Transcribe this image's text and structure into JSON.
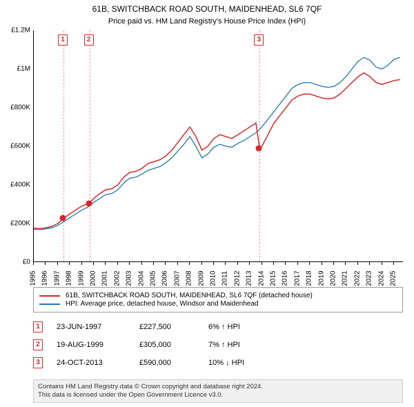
{
  "title": {
    "line1": "61B, SWITCHBACK ROAD SOUTH, MAIDENHEAD, SL6 7QF",
    "line2": "Price paid vs. HM Land Registry's House Price Index (HPI)"
  },
  "chart": {
    "type": "line",
    "x_range": [
      1995,
      2025.8
    ],
    "y_range": [
      0,
      1200000
    ],
    "y_ticks": [
      0,
      200000,
      400000,
      600000,
      800000,
      1000000,
      1200000
    ],
    "y_tick_labels": [
      "£0",
      "£200K",
      "£400K",
      "£600K",
      "£800K",
      "£1M",
      "£1.2M"
    ],
    "x_ticks": [
      1995,
      1996,
      1997,
      1998,
      1999,
      2000,
      2001,
      2002,
      2003,
      2004,
      2005,
      2006,
      2007,
      2008,
      2009,
      2010,
      2011,
      2012,
      2013,
      2014,
      2015,
      2016,
      2017,
      2018,
      2019,
      2020,
      2021,
      2022,
      2023,
      2024,
      2025
    ],
    "background_color": "#ffffff",
    "axis_color": "#000000",
    "axis_fontsize": 10,
    "series": {
      "property": {
        "label": "61B, SWITCHBACK ROAD SOUTH, MAIDENHEAD, SL6 7QF (detached house)",
        "color": "#d62728",
        "line_width": 1.5,
        "data": [
          [
            1995.0,
            176000
          ],
          [
            1995.5,
            174000
          ],
          [
            1996.0,
            178000
          ],
          [
            1996.5,
            185000
          ],
          [
            1997.0,
            200000
          ],
          [
            1997.48,
            227500
          ],
          [
            1998.0,
            250000
          ],
          [
            1998.5,
            270000
          ],
          [
            1999.0,
            290000
          ],
          [
            1999.63,
            305000
          ],
          [
            2000.0,
            330000
          ],
          [
            2000.5,
            355000
          ],
          [
            2001.0,
            375000
          ],
          [
            2001.5,
            380000
          ],
          [
            2002.0,
            400000
          ],
          [
            2002.5,
            440000
          ],
          [
            2003.0,
            465000
          ],
          [
            2003.5,
            470000
          ],
          [
            2004.0,
            485000
          ],
          [
            2004.5,
            510000
          ],
          [
            2005.0,
            520000
          ],
          [
            2005.5,
            530000
          ],
          [
            2006.0,
            550000
          ],
          [
            2006.5,
            580000
          ],
          [
            2007.0,
            620000
          ],
          [
            2007.5,
            660000
          ],
          [
            2008.0,
            700000
          ],
          [
            2008.5,
            650000
          ],
          [
            2009.0,
            580000
          ],
          [
            2009.5,
            600000
          ],
          [
            2010.0,
            640000
          ],
          [
            2010.5,
            660000
          ],
          [
            2011.0,
            650000
          ],
          [
            2011.5,
            640000
          ],
          [
            2012.0,
            660000
          ],
          [
            2012.5,
            680000
          ],
          [
            2013.0,
            700000
          ],
          [
            2013.5,
            720000
          ],
          [
            2013.81,
            590000
          ],
          [
            2014.0,
            600000
          ],
          [
            2014.5,
            660000
          ],
          [
            2015.0,
            720000
          ],
          [
            2015.5,
            760000
          ],
          [
            2016.0,
            800000
          ],
          [
            2016.5,
            840000
          ],
          [
            2017.0,
            860000
          ],
          [
            2017.5,
            870000
          ],
          [
            2018.0,
            870000
          ],
          [
            2018.5,
            860000
          ],
          [
            2019.0,
            850000
          ],
          [
            2019.5,
            845000
          ],
          [
            2020.0,
            850000
          ],
          [
            2020.5,
            870000
          ],
          [
            2021.0,
            900000
          ],
          [
            2021.5,
            930000
          ],
          [
            2022.0,
            960000
          ],
          [
            2022.5,
            980000
          ],
          [
            2023.0,
            960000
          ],
          [
            2023.5,
            930000
          ],
          [
            2024.0,
            920000
          ],
          [
            2024.5,
            930000
          ],
          [
            2025.0,
            940000
          ],
          [
            2025.5,
            945000
          ]
        ]
      },
      "hpi": {
        "label": "HPI: Average price, detached house, Windsor and Maidenhead",
        "color": "#1f77b4",
        "line_width": 1.3,
        "data": [
          [
            1995.0,
            170000
          ],
          [
            1995.5,
            168000
          ],
          [
            1996.0,
            172000
          ],
          [
            1996.5,
            178000
          ],
          [
            1997.0,
            190000
          ],
          [
            1997.5,
            210000
          ],
          [
            1998.0,
            230000
          ],
          [
            1998.5,
            250000
          ],
          [
            1999.0,
            270000
          ],
          [
            1999.5,
            285000
          ],
          [
            2000.0,
            310000
          ],
          [
            2000.5,
            330000
          ],
          [
            2001.0,
            350000
          ],
          [
            2001.5,
            355000
          ],
          [
            2002.0,
            375000
          ],
          [
            2002.5,
            410000
          ],
          [
            2003.0,
            435000
          ],
          [
            2003.5,
            440000
          ],
          [
            2004.0,
            455000
          ],
          [
            2004.5,
            475000
          ],
          [
            2005.0,
            485000
          ],
          [
            2005.5,
            495000
          ],
          [
            2006.0,
            515000
          ],
          [
            2006.5,
            540000
          ],
          [
            2007.0,
            575000
          ],
          [
            2007.5,
            610000
          ],
          [
            2008.0,
            650000
          ],
          [
            2008.5,
            600000
          ],
          [
            2009.0,
            540000
          ],
          [
            2009.5,
            560000
          ],
          [
            2010.0,
            595000
          ],
          [
            2010.5,
            610000
          ],
          [
            2011.0,
            600000
          ],
          [
            2011.5,
            595000
          ],
          [
            2012.0,
            615000
          ],
          [
            2012.5,
            630000
          ],
          [
            2013.0,
            650000
          ],
          [
            2013.5,
            670000
          ],
          [
            2014.0,
            700000
          ],
          [
            2014.5,
            740000
          ],
          [
            2015.0,
            780000
          ],
          [
            2015.5,
            820000
          ],
          [
            2016.0,
            860000
          ],
          [
            2016.5,
            900000
          ],
          [
            2017.0,
            920000
          ],
          [
            2017.5,
            930000
          ],
          [
            2018.0,
            930000
          ],
          [
            2018.5,
            920000
          ],
          [
            2019.0,
            910000
          ],
          [
            2019.5,
            905000
          ],
          [
            2020.0,
            910000
          ],
          [
            2020.5,
            930000
          ],
          [
            2021.0,
            960000
          ],
          [
            2021.5,
            1000000
          ],
          [
            2022.0,
            1040000
          ],
          [
            2022.5,
            1060000
          ],
          [
            2023.0,
            1045000
          ],
          [
            2023.5,
            1010000
          ],
          [
            2024.0,
            1000000
          ],
          [
            2024.5,
            1020000
          ],
          [
            2025.0,
            1050000
          ],
          [
            2025.5,
            1060000
          ]
        ]
      }
    },
    "sale_markers": [
      {
        "n": "1",
        "x": 1997.48,
        "y": 227500,
        "date": "23-JUN-1997",
        "price": "£227,500",
        "diff": "6% ↑ HPI",
        "color": "#d62728"
      },
      {
        "n": "2",
        "x": 1999.63,
        "y": 305000,
        "date": "19-AUG-1999",
        "price": "£305,000",
        "diff": "7% ↑ HPI",
        "color": "#d62728"
      },
      {
        "n": "3",
        "x": 2013.81,
        "y": 590000,
        "date": "24-OCT-2013",
        "price": "£590,000",
        "diff": "10% ↓ HPI",
        "color": "#d62728"
      }
    ]
  },
  "attribution": {
    "line1": "Contains HM Land Registry data © Crown copyright and database right 2024.",
    "line2": "This data is licensed under the Open Government Licence v3.0."
  }
}
